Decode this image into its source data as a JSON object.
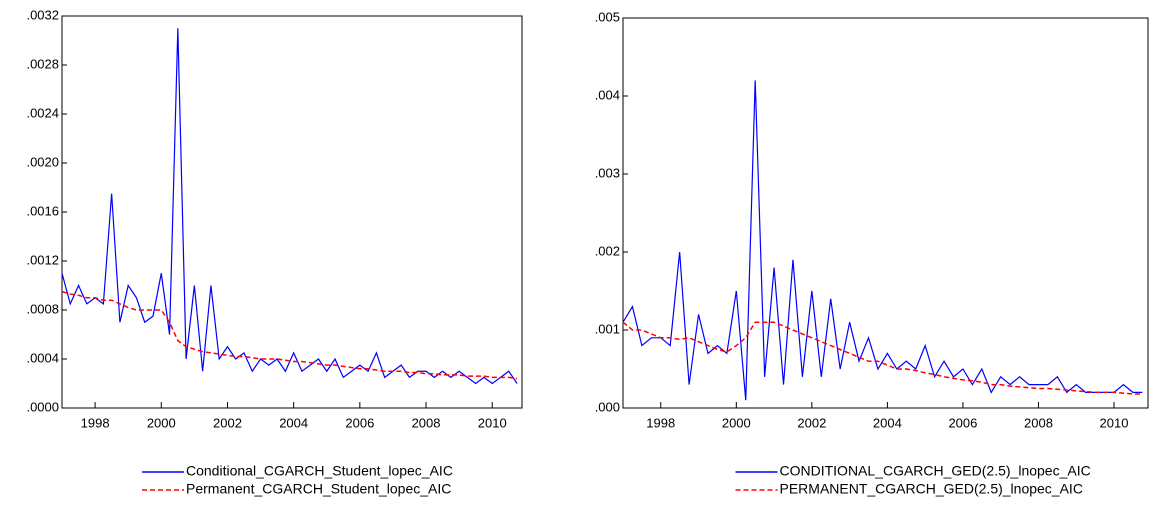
{
  "chart_data": [
    {
      "type": "line",
      "x": [
        1997,
        1997.25,
        1997.5,
        1997.75,
        1998,
        1998.25,
        1998.5,
        1998.75,
        1999,
        1999.25,
        1999.5,
        1999.75,
        2000,
        2000.25,
        2000.5,
        2000.75,
        2001,
        2001.25,
        2001.5,
        2001.75,
        2002,
        2002.25,
        2002.5,
        2002.75,
        2003,
        2003.25,
        2003.5,
        2003.75,
        2004,
        2004.25,
        2004.5,
        2004.75,
        2005,
        2005.25,
        2005.5,
        2005.75,
        2006,
        2006.25,
        2006.5,
        2006.75,
        2007,
        2007.25,
        2007.5,
        2007.75,
        2008,
        2008.25,
        2008.5,
        2008.75,
        2009,
        2009.25,
        2009.5,
        2009.75,
        2010,
        2010.25,
        2010.5,
        2010.75
      ],
      "series": [
        {
          "name": "Conditional_CGARCH_Student_lopec_AIC",
          "color": "#0000ff",
          "dashed": false,
          "values": [
            0.0011,
            0.00085,
            0.001,
            0.00085,
            0.0009,
            0.00085,
            0.00175,
            0.0007,
            0.001,
            0.0009,
            0.0007,
            0.00075,
            0.0011,
            0.0006,
            0.0031,
            0.0004,
            0.001,
            0.0003,
            0.001,
            0.0004,
            0.0005,
            0.0004,
            0.00045,
            0.0003,
            0.0004,
            0.00035,
            0.0004,
            0.0003,
            0.00045,
            0.0003,
            0.00035,
            0.0004,
            0.0003,
            0.0004,
            0.00025,
            0.0003,
            0.00035,
            0.0003,
            0.00045,
            0.00025,
            0.0003,
            0.00035,
            0.00025,
            0.0003,
            0.0003,
            0.00025,
            0.0003,
            0.00025,
            0.0003,
            0.00025,
            0.0002,
            0.00025,
            0.0002,
            0.00025,
            0.0003,
            0.0002
          ]
        },
        {
          "name": "Permanent_CGARCH_Student_lopec_AIC",
          "color": "#ff0000",
          "dashed": true,
          "values": [
            0.00095,
            0.00093,
            0.00092,
            0.0009,
            0.0009,
            0.00088,
            0.00088,
            0.00085,
            0.00082,
            0.0008,
            0.0008,
            0.0008,
            0.0008,
            0.0007,
            0.00055,
            0.0005,
            0.00048,
            0.00046,
            0.00045,
            0.00044,
            0.00043,
            0.00042,
            0.00042,
            0.00041,
            0.0004,
            0.0004,
            0.0004,
            0.00039,
            0.00038,
            0.00038,
            0.00037,
            0.00036,
            0.00035,
            0.00035,
            0.00034,
            0.00033,
            0.00032,
            0.00032,
            0.00031,
            0.0003,
            0.0003,
            0.0003,
            0.00029,
            0.00029,
            0.00028,
            0.00028,
            0.00027,
            0.00027,
            0.00027,
            0.00026,
            0.00026,
            0.00026,
            0.00025,
            0.00025,
            0.00025,
            0.00024
          ]
        }
      ],
      "xlim": [
        1997,
        2010.9
      ],
      "xticks": [
        1998,
        2000,
        2002,
        2004,
        2006,
        2008,
        2010
      ],
      "ylim": [
        0,
        0.0032
      ],
      "yticks": [
        {
          "value": 0,
          "label": ".0000"
        },
        {
          "value": 0.0004,
          "label": ".0004"
        },
        {
          "value": 0.0008,
          "label": ".0008"
        },
        {
          "value": 0.0012,
          "label": ".0012"
        },
        {
          "value": 0.0016,
          "label": ".0016"
        },
        {
          "value": 0.002,
          "label": ".0020"
        },
        {
          "value": 0.0024,
          "label": ".0024"
        },
        {
          "value": 0.0028,
          "label": ".0028"
        },
        {
          "value": 0.0032,
          "label": ".0032"
        }
      ],
      "grid": false,
      "legend": "bottom"
    },
    {
      "type": "line",
      "x": [
        1997,
        1997.25,
        1997.5,
        1997.75,
        1998,
        1998.25,
        1998.5,
        1998.75,
        1999,
        1999.25,
        1999.5,
        1999.75,
        2000,
        2000.25,
        2000.5,
        2000.75,
        2001,
        2001.25,
        2001.5,
        2001.75,
        2002,
        2002.25,
        2002.5,
        2002.75,
        2003,
        2003.25,
        2003.5,
        2003.75,
        2004,
        2004.25,
        2004.5,
        2004.75,
        2005,
        2005.25,
        2005.5,
        2005.75,
        2006,
        2006.25,
        2006.5,
        2006.75,
        2007,
        2007.25,
        2007.5,
        2007.75,
        2008,
        2008.25,
        2008.5,
        2008.75,
        2009,
        2009.25,
        2009.5,
        2009.75,
        2010,
        2010.25,
        2010.5,
        2010.75
      ],
      "series": [
        {
          "name": "CONDITIONAL_CGARCH_GED(2.5)_lnopec_AIC",
          "color": "#0000ff",
          "dashed": false,
          "values": [
            0.0011,
            0.0013,
            0.0008,
            0.0009,
            0.0009,
            0.0008,
            0.002,
            0.0003,
            0.0012,
            0.0007,
            0.0008,
            0.0007,
            0.0015,
            0.0001,
            0.0042,
            0.0004,
            0.0018,
            0.0003,
            0.0019,
            0.0004,
            0.0015,
            0.0004,
            0.0014,
            0.0005,
            0.0011,
            0.0006,
            0.0009,
            0.0005,
            0.0007,
            0.0005,
            0.0006,
            0.0005,
            0.0008,
            0.0004,
            0.0006,
            0.0004,
            0.0005,
            0.0003,
            0.0005,
            0.0002,
            0.0004,
            0.0003,
            0.0004,
            0.0003,
            0.0003,
            0.0003,
            0.0004,
            0.0002,
            0.0003,
            0.0002,
            0.0002,
            0.0002,
            0.0002,
            0.0003,
            0.0002,
            0.0002
          ]
        },
        {
          "name": "PERMANENT_CGARCH_GED(2.5)_lnopec_AIC",
          "color": "#ff0000",
          "dashed": true,
          "values": [
            0.0011,
            0.001,
            0.001,
            0.00095,
            0.0009,
            0.0009,
            0.00088,
            0.0009,
            0.00085,
            0.0008,
            0.00075,
            0.00072,
            0.0008,
            0.0009,
            0.0011,
            0.0011,
            0.0011,
            0.00105,
            0.001,
            0.00095,
            0.0009,
            0.00085,
            0.0008,
            0.00075,
            0.0007,
            0.00065,
            0.0006,
            0.0006,
            0.00055,
            0.0005,
            0.0005,
            0.00048,
            0.00045,
            0.00043,
            0.0004,
            0.00038,
            0.00036,
            0.00035,
            0.00033,
            0.0003,
            0.0003,
            0.00028,
            0.00027,
            0.00026,
            0.00025,
            0.00025,
            0.00024,
            0.00023,
            0.00022,
            0.00021,
            0.0002,
            0.0002,
            0.0002,
            0.00019,
            0.00018,
            0.00018
          ]
        }
      ],
      "xlim": [
        1997,
        2010.9
      ],
      "xticks": [
        1998,
        2000,
        2002,
        2004,
        2006,
        2008,
        2010
      ],
      "ylim": [
        0,
        0.005
      ],
      "yticks": [
        {
          "value": 0,
          "label": ".000"
        },
        {
          "value": 0.001,
          "label": ".001"
        },
        {
          "value": 0.002,
          "label": ".002"
        },
        {
          "value": 0.003,
          "label": ".003"
        },
        {
          "value": 0.004,
          "label": ".004"
        },
        {
          "value": 0.005,
          "label": ".005"
        }
      ],
      "grid": false,
      "legend": "bottom"
    }
  ]
}
